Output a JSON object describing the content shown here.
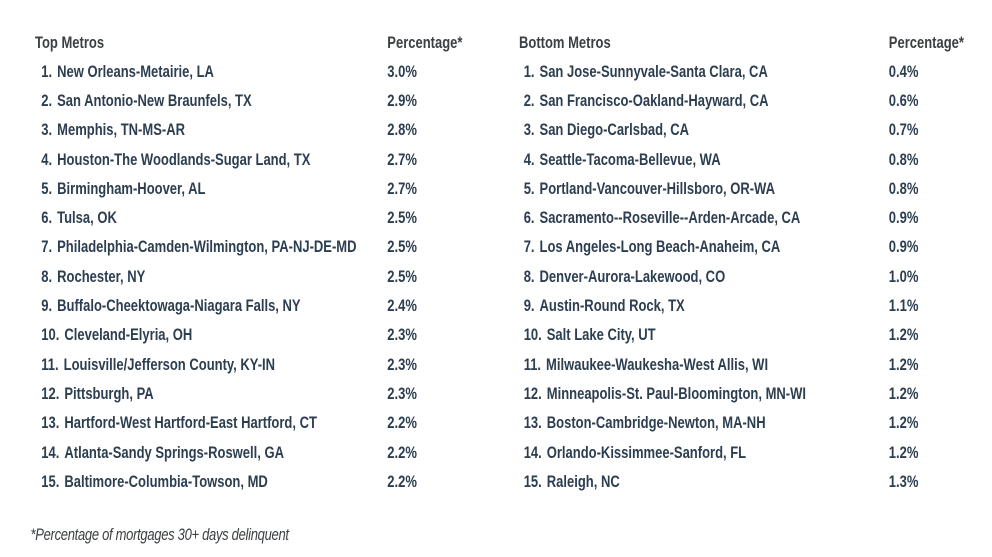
{
  "page": {
    "background_color": "#ffffff"
  },
  "colors": {
    "column_header_text": "#3c4043",
    "row_text": "#2c3e50",
    "footnote_text": "#3c4043"
  },
  "footnote": "*Percentage of mortgages 30+ days delinquent",
  "tables": [
    {
      "header": {
        "metros_label": "Top Metros",
        "percentage_label": "Percentage*"
      },
      "rows": [
        {
          "rank": "1.",
          "metro": "New Orleans-Metairie, LA",
          "percentage": "3.0%"
        },
        {
          "rank": "2.",
          "metro": "San Antonio-New Braunfels, TX",
          "percentage": "2.9%"
        },
        {
          "rank": "3.",
          "metro": "Memphis, TN-MS-AR",
          "percentage": "2.8%"
        },
        {
          "rank": "4.",
          "metro": "Houston-The Woodlands-Sugar Land, TX",
          "percentage": "2.7%"
        },
        {
          "rank": "5.",
          "metro": "Birmingham-Hoover, AL",
          "percentage": "2.7%"
        },
        {
          "rank": "6.",
          "metro": "Tulsa, OK",
          "percentage": "2.5%"
        },
        {
          "rank": "7.",
          "metro": "Philadelphia-Camden-Wilmington, PA-NJ-DE-MD",
          "percentage": "2.5%"
        },
        {
          "rank": "8.",
          "metro": "Rochester, NY",
          "percentage": "2.5%"
        },
        {
          "rank": "9.",
          "metro": "Buffalo-Cheektowaga-Niagara Falls, NY",
          "percentage": "2.4%"
        },
        {
          "rank": "10.",
          "metro": "Cleveland-Elyria, OH",
          "percentage": "2.3%"
        },
        {
          "rank": "11.",
          "metro": "Louisville/Jefferson County, KY-IN",
          "percentage": "2.3%"
        },
        {
          "rank": "12.",
          "metro": "Pittsburgh, PA",
          "percentage": "2.3%"
        },
        {
          "rank": "13.",
          "metro": "Hartford-West Hartford-East Hartford, CT",
          "percentage": "2.2%"
        },
        {
          "rank": "14.",
          "metro": "Atlanta-Sandy Springs-Roswell, GA",
          "percentage": "2.2%"
        },
        {
          "rank": "15.",
          "metro": "Baltimore-Columbia-Towson, MD",
          "percentage": "2.2%"
        }
      ]
    },
    {
      "header": {
        "metros_label": "Bottom Metros",
        "percentage_label": "Percentage*"
      },
      "rows": [
        {
          "rank": "1.",
          "metro": "San Jose-Sunnyvale-Santa Clara, CA",
          "percentage": "0.4%"
        },
        {
          "rank": "2.",
          "metro": "San Francisco-Oakland-Hayward, CA",
          "percentage": "0.6%"
        },
        {
          "rank": "3.",
          "metro": "San Diego-Carlsbad, CA",
          "percentage": "0.7%"
        },
        {
          "rank": "4.",
          "metro": "Seattle-Tacoma-Bellevue, WA",
          "percentage": "0.8%"
        },
        {
          "rank": "5.",
          "metro": "Portland-Vancouver-Hillsboro, OR-WA",
          "percentage": "0.8%"
        },
        {
          "rank": "6.",
          "metro": "Sacramento--Roseville--Arden-Arcade, CA",
          "percentage": "0.9%"
        },
        {
          "rank": "7.",
          "metro": "Los Angeles-Long Beach-Anaheim, CA",
          "percentage": "0.9%"
        },
        {
          "rank": "8.",
          "metro": "Denver-Aurora-Lakewood, CO",
          "percentage": "1.0%"
        },
        {
          "rank": "9.",
          "metro": "Austin-Round Rock, TX",
          "percentage": "1.1%"
        },
        {
          "rank": "10.",
          "metro": "Salt Lake City, UT",
          "percentage": "1.2%"
        },
        {
          "rank": "11.",
          "metro": "Milwaukee-Waukesha-West Allis, WI",
          "percentage": "1.2%"
        },
        {
          "rank": "12.",
          "metro": "Minneapolis-St. Paul-Bloomington, MN-WI",
          "percentage": "1.2%"
        },
        {
          "rank": "13.",
          "metro": "Boston-Cambridge-Newton, MA-NH",
          "percentage": "1.2%"
        },
        {
          "rank": "14.",
          "metro": "Orlando-Kissimmee-Sanford, FL",
          "percentage": "1.2%"
        },
        {
          "rank": "15.",
          "metro": "Raleigh, NC",
          "percentage": "1.3%"
        }
      ]
    }
  ],
  "chart_data": {
    "type": "table",
    "title": "",
    "footnote": "*Percentage of mortgages 30+ days delinquent",
    "tables": [
      {
        "columns": [
          "Top Metros",
          "Percentage*"
        ],
        "categories": [
          "New Orleans-Metairie, LA",
          "San Antonio-New Braunfels, TX",
          "Memphis, TN-MS-AR",
          "Houston-The Woodlands-Sugar Land, TX",
          "Birmingham-Hoover, AL",
          "Tulsa, OK",
          "Philadelphia-Camden-Wilmington, PA-NJ-DE-MD",
          "Rochester, NY",
          "Buffalo-Cheektowaga-Niagara Falls, NY",
          "Cleveland-Elyria, OH",
          "Louisville/Jefferson County, KY-IN",
          "Pittsburgh, PA",
          "Hartford-West Hartford-East Hartford, CT",
          "Atlanta-Sandy Springs-Roswell, GA",
          "Baltimore-Columbia-Towson, MD"
        ],
        "values": [
          3.0,
          2.9,
          2.8,
          2.7,
          2.7,
          2.5,
          2.5,
          2.5,
          2.4,
          2.3,
          2.3,
          2.3,
          2.2,
          2.2,
          2.2
        ]
      },
      {
        "columns": [
          "Bottom Metros",
          "Percentage*"
        ],
        "categories": [
          "San Jose-Sunnyvale-Santa Clara, CA",
          "San Francisco-Oakland-Hayward, CA",
          "San Diego-Carlsbad, CA",
          "Seattle-Tacoma-Bellevue, WA",
          "Portland-Vancouver-Hillsboro, OR-WA",
          "Sacramento--Roseville--Arden-Arcade, CA",
          "Los Angeles-Long Beach-Anaheim, CA",
          "Denver-Aurora-Lakewood, CO",
          "Austin-Round Rock, TX",
          "Salt Lake City, UT",
          "Milwaukee-Waukesha-West Allis, WI",
          "Minneapolis-St. Paul-Bloomington, MN-WI",
          "Boston-Cambridge-Newton, MA-NH",
          "Orlando-Kissimmee-Sanford, FL",
          "Raleigh, NC"
        ],
        "values": [
          0.4,
          0.6,
          0.7,
          0.8,
          0.8,
          0.9,
          0.9,
          1.0,
          1.1,
          1.2,
          1.2,
          1.2,
          1.2,
          1.2,
          1.3
        ]
      }
    ]
  }
}
